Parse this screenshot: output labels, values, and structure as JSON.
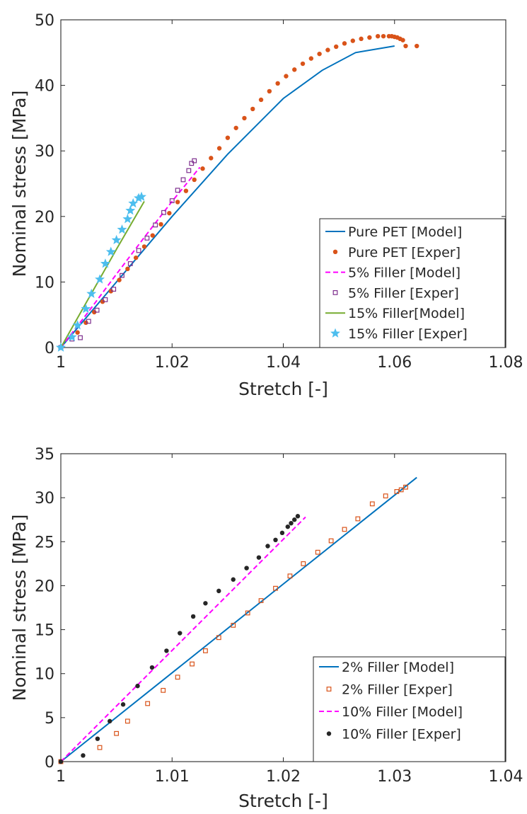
{
  "chart_data": [
    {
      "type": "line",
      "xlabel": "Stretch [-]",
      "ylabel": "Nominal stress [MPa]",
      "xlim": [
        1,
        1.08
      ],
      "ylim": [
        0,
        50
      ],
      "xticks": [
        1,
        1.02,
        1.04,
        1.06,
        1.08
      ],
      "yticks": [
        0,
        10,
        20,
        30,
        40,
        50
      ],
      "xtick_labels": [
        "1",
        "1.02",
        "1.04",
        "1.06",
        "1.08"
      ],
      "ytick_labels": [
        "0",
        "10",
        "20",
        "30",
        "40",
        "50"
      ],
      "grid": false,
      "legend_position": "bottom-right",
      "series": [
        {
          "name": "Pure PET [Model]",
          "style": "solid",
          "marker": "none",
          "color": "#0072BD",
          "x": [
            1.0,
            1.01,
            1.02,
            1.03,
            1.04,
            1.047,
            1.053,
            1.06
          ],
          "y": [
            0,
            10.0,
            20.0,
            29.5,
            38.0,
            42.3,
            45.0,
            46.0
          ]
        },
        {
          "name": "Pure PET [Exper]",
          "style": "none",
          "marker": "dot",
          "color": "#D95319",
          "x": [
            1.0,
            1.003,
            1.0045,
            1.006,
            1.0075,
            1.009,
            1.0105,
            1.012,
            1.0135,
            1.015,
            1.0165,
            1.018,
            1.0195,
            1.021,
            1.0225,
            1.024,
            1.0255,
            1.027,
            1.0285,
            1.03,
            1.0315,
            1.033,
            1.0345,
            1.036,
            1.0375,
            1.039,
            1.0405,
            1.042,
            1.0435,
            1.045,
            1.0465,
            1.048,
            1.0495,
            1.051,
            1.0525,
            1.054,
            1.0555,
            1.057,
            1.058,
            1.059,
            1.0595,
            1.06,
            1.0605,
            1.061,
            1.0615,
            1.062,
            1.064
          ],
          "y": [
            0,
            2.3,
            3.8,
            5.4,
            7.0,
            8.6,
            10.3,
            12.0,
            13.7,
            15.4,
            17.1,
            18.8,
            20.5,
            22.2,
            23.9,
            25.6,
            27.3,
            28.9,
            30.4,
            32.0,
            33.5,
            35.0,
            36.4,
            37.8,
            39.1,
            40.3,
            41.4,
            42.4,
            43.3,
            44.1,
            44.8,
            45.4,
            45.9,
            46.4,
            46.8,
            47.1,
            47.3,
            47.5,
            47.5,
            47.5,
            47.5,
            47.4,
            47.3,
            47.1,
            46.9,
            46.0,
            46.0
          ]
        },
        {
          "name": "5% Filler [Model]",
          "style": "dashed",
          "marker": "none",
          "color": "#FF00FF",
          "x": [
            1.0,
            1.005,
            1.01,
            1.015,
            1.02,
            1.025
          ],
          "y": [
            0,
            5.5,
            11.2,
            16.8,
            22.3,
            27.5
          ]
        },
        {
          "name": "5% Filler [Exper]",
          "style": "none",
          "marker": "square",
          "color": "#7E2F8E",
          "x": [
            1.0,
            1.002,
            1.0035,
            1.005,
            1.0065,
            1.008,
            1.0095,
            1.011,
            1.0125,
            1.014,
            1.0155,
            1.017,
            1.0185,
            1.02,
            1.021,
            1.022,
            1.023,
            1.0235,
            1.024
          ],
          "y": [
            0,
            1.3,
            1.5,
            4.0,
            5.7,
            7.3,
            8.9,
            11.0,
            12.8,
            14.8,
            16.7,
            18.7,
            20.6,
            22.4,
            24.0,
            25.6,
            27.0,
            28.1,
            28.5
          ]
        },
        {
          "name": "15% Filler[Model]",
          "style": "solid",
          "marker": "none",
          "color": "#77AC30",
          "x": [
            1.0,
            1.005,
            1.01,
            1.015
          ],
          "y": [
            0,
            7.5,
            15.0,
            22.3
          ]
        },
        {
          "name": "15% Filler [Exper]",
          "style": "none",
          "marker": "star",
          "color": "#4DBEEE",
          "x": [
            1.0,
            1.002,
            1.003,
            1.0045,
            1.0055,
            1.007,
            1.008,
            1.009,
            1.01,
            1.011,
            1.012,
            1.0125,
            1.013,
            1.014,
            1.0145
          ],
          "y": [
            0,
            1.6,
            3.4,
            5.9,
            8.2,
            10.4,
            12.8,
            14.6,
            16.4,
            18.0,
            19.6,
            20.9,
            22.0,
            22.8,
            23.0
          ]
        }
      ]
    },
    {
      "type": "line",
      "xlabel": "Stretch [-]",
      "ylabel": "Nominal stress [MPa]",
      "xlim": [
        1,
        1.04
      ],
      "ylim": [
        0,
        35
      ],
      "xticks": [
        1,
        1.01,
        1.02,
        1.03,
        1.04
      ],
      "yticks": [
        0,
        5,
        10,
        15,
        20,
        25,
        30,
        35
      ],
      "xtick_labels": [
        "1",
        "1.01",
        "1.02",
        "1.03",
        "1.04"
      ],
      "ytick_labels": [
        "0",
        "5",
        "10",
        "15",
        "20",
        "25",
        "30",
        "35"
      ],
      "grid": false,
      "legend_position": "bottom-right",
      "series": [
        {
          "name": "2% Filler [Model]",
          "style": "solid",
          "marker": "none",
          "color": "#0072BD",
          "x": [
            1.0,
            1.032
          ],
          "y": [
            0,
            32.3
          ]
        },
        {
          "name": "2% Filler [Exper]",
          "style": "none",
          "marker": "square",
          "color": "#D95319",
          "x": [
            1.0,
            1.0035,
            1.005,
            1.006,
            1.0078,
            1.0092,
            1.0105,
            1.0118,
            1.013,
            1.0142,
            1.0155,
            1.0168,
            1.018,
            1.0193,
            1.0206,
            1.0218,
            1.0231,
            1.0243,
            1.0255,
            1.0267,
            1.028,
            1.0292,
            1.0302,
            1.0306,
            1.031
          ],
          "y": [
            0,
            1.6,
            3.2,
            4.6,
            6.6,
            8.1,
            9.6,
            11.1,
            12.6,
            14.1,
            15.5,
            16.9,
            18.3,
            19.7,
            21.1,
            22.5,
            23.8,
            25.1,
            26.4,
            27.6,
            29.3,
            30.2,
            30.7,
            30.9,
            31.2
          ]
        },
        {
          "name": "10% Filler [Model]",
          "style": "dashed",
          "marker": "none",
          "color": "#FF00FF",
          "x": [
            1.0,
            1.022
          ],
          "y": [
            0,
            27.8
          ]
        },
        {
          "name": "10% Filler [Exper]",
          "style": "none",
          "marker": "dot",
          "color": "#262626",
          "x": [
            1.0,
            1.002,
            1.0033,
            1.0044,
            1.0056,
            1.0069,
            1.0082,
            1.0095,
            1.0107,
            1.0119,
            1.013,
            1.0142,
            1.0155,
            1.0167,
            1.0178,
            1.0186,
            1.0193,
            1.0199,
            1.0204,
            1.0207,
            1.021,
            1.0213
          ],
          "y": [
            0,
            0.7,
            2.6,
            4.6,
            6.5,
            8.6,
            10.7,
            12.6,
            14.6,
            16.5,
            18.0,
            19.4,
            20.7,
            22.0,
            23.2,
            24.5,
            25.2,
            26.0,
            26.7,
            27.1,
            27.5,
            27.9
          ]
        }
      ]
    }
  ]
}
